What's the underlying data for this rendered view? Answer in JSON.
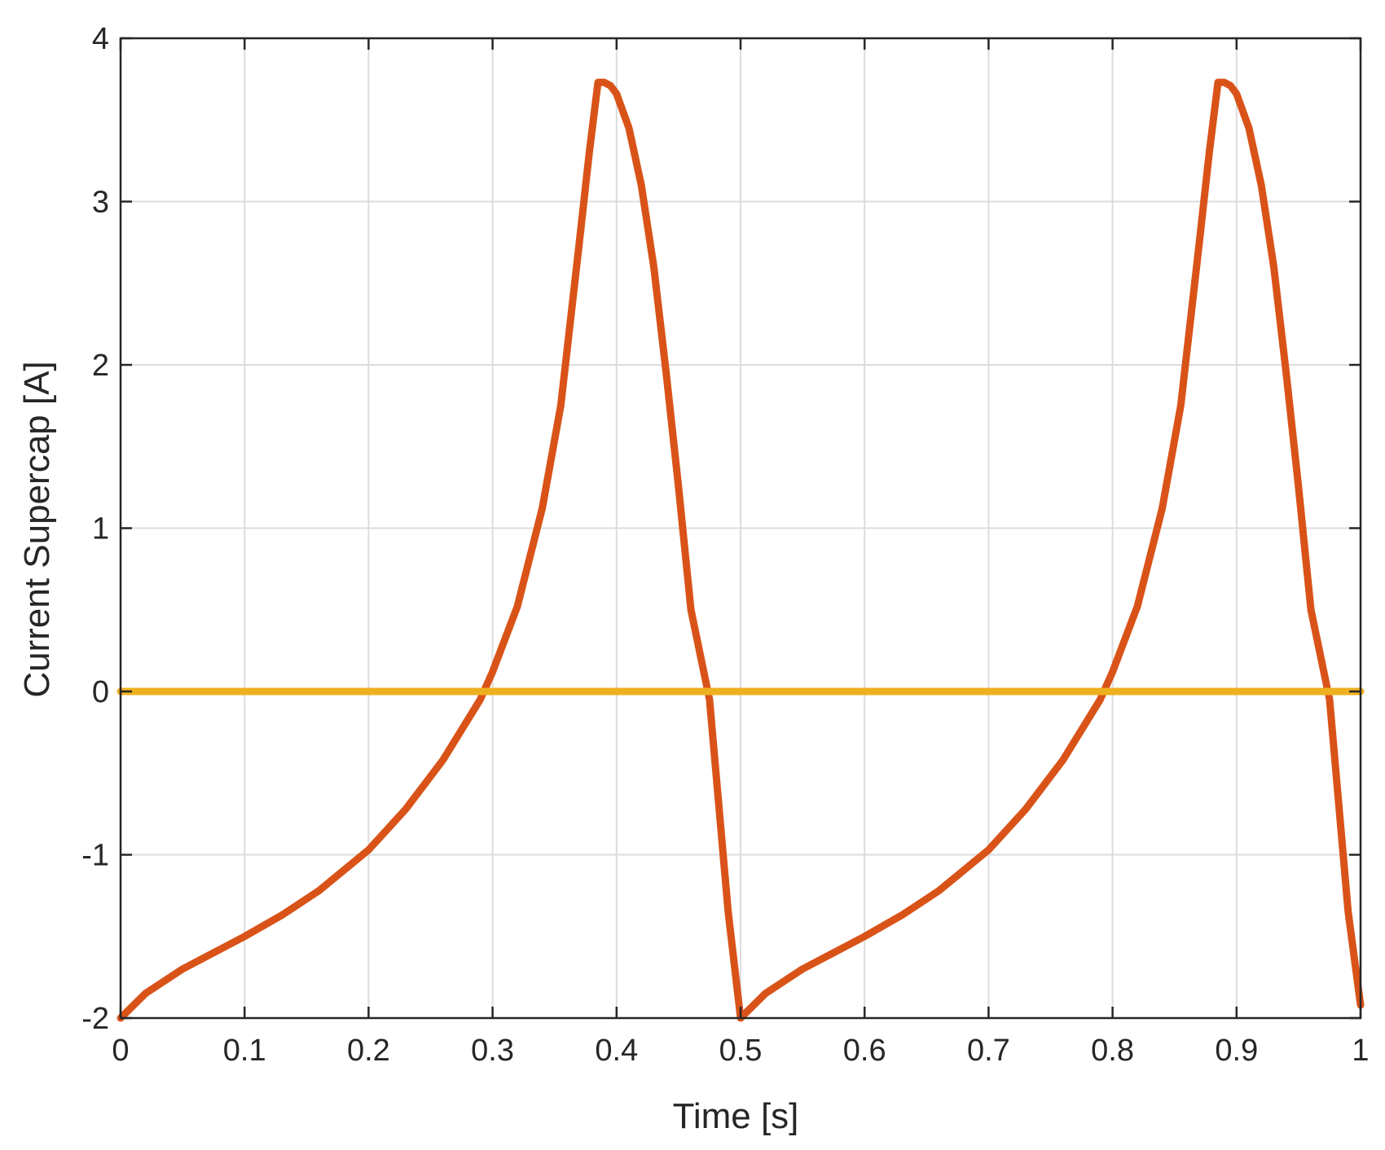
{
  "chart_data": {
    "type": "line",
    "title": "",
    "xlabel": "Time [s]",
    "ylabel": "Current Supercap [A]",
    "xlim": [
      0,
      1
    ],
    "ylim": [
      -2,
      4
    ],
    "xticks": [
      0,
      0.1,
      0.2,
      0.3,
      0.4,
      0.5,
      0.6,
      0.7,
      0.8,
      0.9,
      1
    ],
    "xtick_labels": [
      "0",
      "0.1",
      "0.2",
      "0.3",
      "0.4",
      "0.5",
      "0.6",
      "0.7",
      "0.8",
      "0.9",
      "1"
    ],
    "yticks": [
      -2,
      -1,
      0,
      1,
      2,
      3,
      4
    ],
    "ytick_labels": [
      "-2",
      "-1",
      "0",
      "1",
      "2",
      "3",
      "4"
    ],
    "grid": true,
    "legend": "none",
    "series": [
      {
        "color": "#D95319",
        "x": [
          0,
          0.02,
          0.05,
          0.08,
          0.1,
          0.13,
          0.16,
          0.2,
          0.23,
          0.26,
          0.29,
          0.3,
          0.32,
          0.34,
          0.355,
          0.37,
          0.378,
          0.385,
          0.39,
          0.395,
          0.4,
          0.41,
          0.42,
          0.43,
          0.44,
          0.45,
          0.46,
          0.475,
          0.49,
          0.5,
          0.52,
          0.55,
          0.58,
          0.6,
          0.63,
          0.66,
          0.7,
          0.73,
          0.76,
          0.79,
          0.8,
          0.82,
          0.84,
          0.855,
          0.87,
          0.878,
          0.885,
          0.89,
          0.895,
          0.9,
          0.91,
          0.92,
          0.93,
          0.94,
          0.95,
          0.96,
          0.975,
          0.99,
          1
        ],
        "y": [
          -2,
          -1.85,
          -1.7,
          -1.58,
          -1.5,
          -1.37,
          -1.22,
          -0.97,
          -0.72,
          -0.42,
          -0.05,
          0.12,
          0.52,
          1.12,
          1.75,
          2.75,
          3.3,
          3.73,
          3.73,
          3.71,
          3.66,
          3.45,
          3.1,
          2.6,
          1.95,
          1.25,
          0.5,
          -0.05,
          -1.35,
          -2,
          -1.85,
          -1.7,
          -1.58,
          -1.5,
          -1.37,
          -1.22,
          -0.97,
          -0.72,
          -0.42,
          -0.05,
          0.12,
          0.52,
          1.12,
          1.75,
          2.75,
          3.3,
          3.73,
          3.73,
          3.71,
          3.66,
          3.45,
          3.1,
          2.6,
          1.95,
          1.25,
          0.5,
          -0.05,
          -1.35,
          -1.92
        ]
      },
      {
        "color": "#EDB120",
        "x": [
          0,
          1
        ],
        "y": [
          0,
          0
        ]
      }
    ]
  }
}
